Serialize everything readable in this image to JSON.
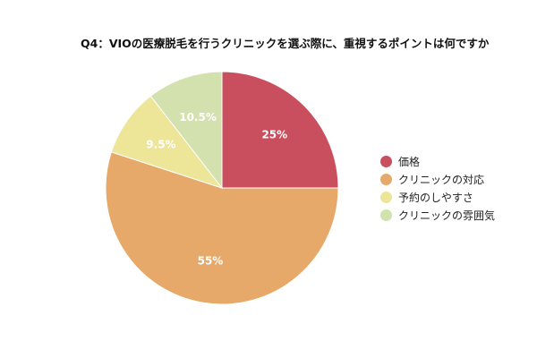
{
  "chart_data": {
    "type": "pie",
    "title": "Q4：VIOの医療脱毛を行うクリニックを選ぶ際に、重視するポイントは何ですか",
    "categories": [
      "価格",
      "クリニックの対応",
      "予約のしやすさ",
      "クリニックの雰囲気"
    ],
    "values": [
      25,
      55,
      9.5,
      10.5
    ],
    "value_labels": [
      "25%",
      "55%",
      "9.5%",
      "10.5%"
    ],
    "colors": [
      "#c94f5e",
      "#e6a96a",
      "#ede598",
      "#d3e1ae"
    ],
    "start": "12 o'clock",
    "direction": "clockwise",
    "legend": "right"
  }
}
